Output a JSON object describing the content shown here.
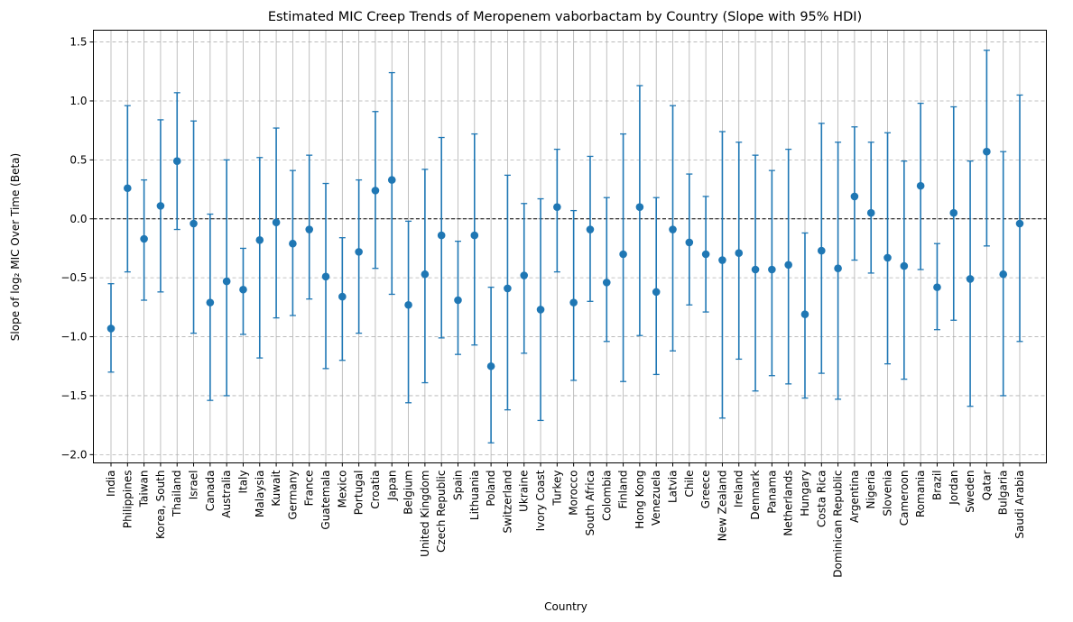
{
  "chart_data": {
    "type": "errorbar",
    "title": "Estimated MIC Creep Trends of Meropenem vaborbactam by Country (Slope with 95% HDI)",
    "xlabel": "Country",
    "ylabel": "Slope of log₂ MIC Over Time (Beta)",
    "ylim": [
      -2.07,
      1.6
    ],
    "yticks": [
      -2.0,
      -1.5,
      -1.0,
      -0.5,
      0.0,
      0.5,
      1.0,
      1.5
    ],
    "ytick_labels": [
      "−2.0",
      "−1.5",
      "−1.0",
      "−0.5",
      "0.0",
      "0.5",
      "1.0",
      "1.5"
    ],
    "reference_line": 0,
    "grid": {
      "x": "solid",
      "y": "dashed"
    },
    "color": "#1f77b4",
    "categories": [
      "India",
      "Philippines",
      "Taiwan",
      "Korea, South",
      "Thailand",
      "Israel",
      "Canada",
      "Australia",
      "Italy",
      "Malaysia",
      "Kuwait",
      "Germany",
      "France",
      "Guatemala",
      "Mexico",
      "Portugal",
      "Croatia",
      "Japan",
      "Belgium",
      "United Kingdom",
      "Czech Republic",
      "Spain",
      "Lithuania",
      "Poland",
      "Switzerland",
      "Ukraine",
      "Ivory Coast",
      "Turkey",
      "Morocco",
      "South Africa",
      "Colombia",
      "Finland",
      "Hong Kong",
      "Venezuela",
      "Latvia",
      "Chile",
      "Greece",
      "New Zealand",
      "Ireland",
      "Denmark",
      "Panama",
      "Netherlands",
      "Hungary",
      "Costa Rica",
      "Dominican Republic",
      "Argentina",
      "Nigeria",
      "Slovenia",
      "Cameroon",
      "Romania",
      "Brazil",
      "Jordan",
      "Sweden",
      "Qatar",
      "Bulgaria",
      "Saudi Arabia"
    ],
    "values": [
      -0.93,
      0.26,
      -0.17,
      0.11,
      0.49,
      -0.04,
      -0.71,
      -0.53,
      -0.6,
      -0.18,
      -0.03,
      -0.21,
      -0.09,
      -0.49,
      -0.66,
      -0.28,
      0.24,
      0.33,
      -0.73,
      -0.47,
      -0.14,
      -0.69,
      -0.14,
      -1.25,
      -0.59,
      -0.48,
      -0.77,
      0.1,
      -0.71,
      -0.09,
      -0.54,
      -0.3,
      0.1,
      -0.62,
      -0.09,
      -0.2,
      -0.3,
      -0.35,
      -0.29,
      -0.43,
      -0.43,
      -0.39,
      -0.81,
      -0.27,
      -0.42,
      0.19,
      0.05,
      -0.33,
      -0.4,
      0.28,
      -0.58,
      0.05,
      -0.51,
      0.57,
      -0.47,
      -0.04
    ],
    "lower": [
      -1.3,
      -0.45,
      -0.69,
      -0.62,
      -0.09,
      -0.97,
      -1.54,
      -1.5,
      -0.98,
      -1.18,
      -0.84,
      -0.82,
      -0.68,
      -1.27,
      -1.2,
      -0.97,
      -0.42,
      -0.64,
      -1.56,
      -1.39,
      -1.01,
      -1.15,
      -1.07,
      -1.9,
      -1.62,
      -1.14,
      -1.71,
      -0.45,
      -1.37,
      -0.7,
      -1.04,
      -1.38,
      -0.99,
      -1.32,
      -1.12,
      -0.73,
      -0.79,
      -1.69,
      -1.19,
      -1.46,
      -1.33,
      -1.4,
      -1.52,
      -1.31,
      -1.53,
      -0.35,
      -0.46,
      -1.23,
      -1.36,
      -0.43,
      -0.94,
      -0.86,
      -1.59,
      -0.23,
      -1.5,
      -1.04
    ],
    "upper": [
      -0.55,
      0.96,
      0.33,
      0.84,
      1.07,
      0.83,
      0.04,
      0.5,
      -0.25,
      0.52,
      0.77,
      0.41,
      0.54,
      0.3,
      -0.16,
      0.33,
      0.91,
      1.24,
      -0.02,
      0.42,
      0.69,
      -0.19,
      0.72,
      -0.58,
      0.37,
      0.13,
      0.17,
      0.59,
      0.07,
      0.53,
      0.18,
      0.72,
      1.13,
      0.18,
      0.96,
      0.38,
      0.19,
      0.74,
      0.65,
      0.54,
      0.41,
      0.59,
      -0.12,
      0.81,
      0.65,
      0.78,
      0.65,
      0.73,
      0.49,
      0.98,
      -0.21,
      0.95,
      0.49,
      1.43,
      0.57,
      1.05
    ]
  }
}
